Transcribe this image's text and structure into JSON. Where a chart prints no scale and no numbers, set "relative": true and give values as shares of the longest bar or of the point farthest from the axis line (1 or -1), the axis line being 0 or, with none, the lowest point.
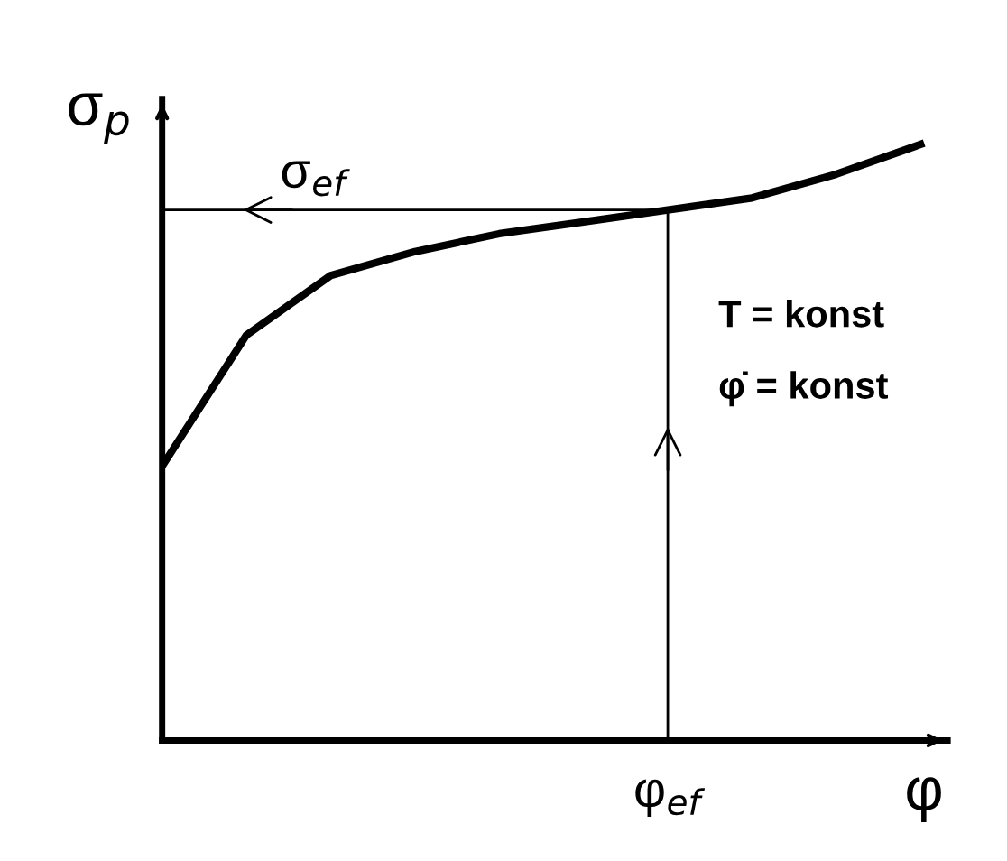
{
  "chart_data": {
    "type": "line",
    "relative": true,
    "xlabel": "φ",
    "ylabel": "σ$_{p}$",
    "categories": [
      null,
      null,
      null,
      null,
      null,
      null,
      null,
      null,
      null,
      null
    ],
    "series": [
      {
        "color": "#000000",
        "values": [
          0.46,
          0.68,
          0.78,
          0.82,
          0.85,
          0.87,
          0.89,
          0.91,
          0.95,
          1.0
        ]
      }
    ],
    "ref_lines": [
      {
        "axis": "y",
        "value": 0.89,
        "label": "σ$_{ef}$",
        "color": "#000000"
      },
      {
        "axis": "x",
        "value": "φ$_{ef}$",
        "label": null,
        "color": "#000000"
      }
    ],
    "annotations": [
      "T = konst",
      "φ̇ = konst"
    ],
    "legend": false,
    "marker": "none",
    "line_style": "solid"
  }
}
